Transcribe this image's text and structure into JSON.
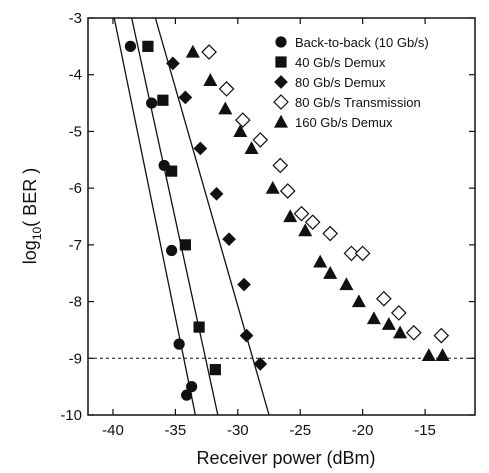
{
  "chart_data": {
    "type": "scatter",
    "title": "",
    "xlabel": "Receiver power   (dBm)",
    "ylabel_main": "log",
    "ylabel_sub": "10",
    "ylabel_rest": "( BER )",
    "xlim": [
      -42,
      -11
    ],
    "ylim": [
      -10,
      -3
    ],
    "x_ticks": [
      -40,
      -35,
      -30,
      -25,
      -20,
      -15
    ],
    "y_ticks": [
      -10,
      -9,
      -8,
      -7,
      -6,
      -5,
      -4,
      -3
    ],
    "x_tick_labels": [
      "-40",
      "-35",
      "-30",
      "-25",
      "-20",
      "-15"
    ],
    "y_tick_labels": [
      "-10",
      "-9",
      "-8",
      "-7",
      "-6",
      "-5",
      "-4",
      "-3"
    ],
    "reference_line": {
      "y": -9,
      "style": "dashed"
    },
    "legend_position": "top-right",
    "series": [
      {
        "name": "Back-to-back (10 Gb/s)",
        "marker": "circle",
        "filled": true,
        "points": [
          [
            -38.6,
            -3.5
          ],
          [
            -36.9,
            -4.5
          ],
          [
            -35.9,
            -5.6
          ],
          [
            -35.3,
            -7.1
          ],
          [
            -34.7,
            -8.75
          ],
          [
            -33.7,
            -9.5
          ],
          [
            -34.1,
            -9.65
          ]
        ],
        "fit_line": [
          [
            -39.9,
            -3.0
          ],
          [
            -33.4,
            -10.0
          ]
        ]
      },
      {
        "name": "40 Gb/s Demux",
        "marker": "square",
        "filled": true,
        "points": [
          [
            -37.2,
            -3.5
          ],
          [
            -36.0,
            -4.45
          ],
          [
            -35.3,
            -5.7
          ],
          [
            -34.2,
            -7.0
          ],
          [
            -33.1,
            -8.45
          ],
          [
            -31.8,
            -9.2
          ]
        ],
        "fit_line": [
          [
            -38.5,
            -3.0
          ],
          [
            -31.6,
            -10.0
          ]
        ]
      },
      {
        "name": "80 Gb/s Demux",
        "marker": "diamond",
        "filled": true,
        "points": [
          [
            -35.2,
            -3.8
          ],
          [
            -34.2,
            -4.4
          ],
          [
            -33.0,
            -5.3
          ],
          [
            -31.7,
            -6.1
          ],
          [
            -30.7,
            -6.9
          ],
          [
            -29.5,
            -7.7
          ],
          [
            -29.3,
            -8.6
          ],
          [
            -28.2,
            -9.1
          ]
        ],
        "fit_line": [
          [
            -36.6,
            -3.0
          ],
          [
            -27.5,
            -10.0
          ]
        ]
      },
      {
        "name": "80 Gb/s Transmission",
        "marker": "diamond",
        "filled": false,
        "points": [
          [
            -32.3,
            -3.6
          ],
          [
            -30.9,
            -4.25
          ],
          [
            -29.6,
            -4.8
          ],
          [
            -28.2,
            -5.15
          ],
          [
            -26.6,
            -5.6
          ],
          [
            -26.0,
            -6.05
          ],
          [
            -24.9,
            -6.45
          ],
          [
            -24.0,
            -6.6
          ],
          [
            -22.6,
            -6.8
          ],
          [
            -20.9,
            -7.15
          ],
          [
            -20.0,
            -7.15
          ],
          [
            -18.3,
            -7.95
          ],
          [
            -17.1,
            -8.2
          ],
          [
            -15.9,
            -8.55
          ],
          [
            -13.7,
            -8.6
          ]
        ],
        "fit_line": []
      },
      {
        "name": "160 Gb/s Demux",
        "marker": "triangle",
        "filled": true,
        "points": [
          [
            -33.6,
            -3.6
          ],
          [
            -32.2,
            -4.1
          ],
          [
            -31.0,
            -4.6
          ],
          [
            -29.8,
            -5.0
          ],
          [
            -28.9,
            -5.3
          ],
          [
            -27.2,
            -6.0
          ],
          [
            -25.8,
            -6.5
          ],
          [
            -24.6,
            -6.75
          ],
          [
            -23.4,
            -7.3
          ],
          [
            -22.6,
            -7.5
          ],
          [
            -21.3,
            -7.7
          ],
          [
            -20.3,
            -8.0
          ],
          [
            -19.1,
            -8.3
          ],
          [
            -17.9,
            -8.4
          ],
          [
            -17.0,
            -8.55
          ],
          [
            -14.7,
            -8.95
          ],
          [
            -13.6,
            -8.95
          ]
        ],
        "fit_line": []
      }
    ]
  }
}
